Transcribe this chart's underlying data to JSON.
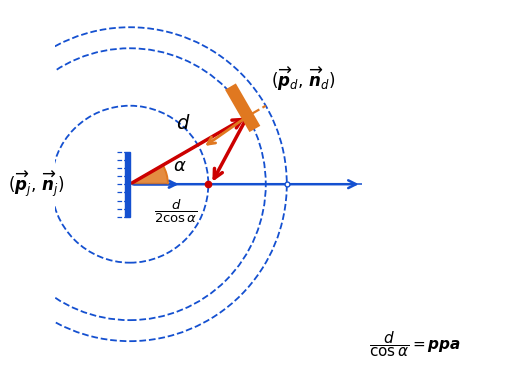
{
  "blue": "#1450d0",
  "orange": "#e07820",
  "red": "#cc0000",
  "cam_x": 0.0,
  "cam_y": 0.0,
  "alpha_deg": 30,
  "d": 1.0,
  "xlim": [
    -0.55,
    2.55
  ],
  "ylim": [
    -1.45,
    1.35
  ],
  "figsize": [
    5.22,
    3.82
  ],
  "dpi": 100
}
